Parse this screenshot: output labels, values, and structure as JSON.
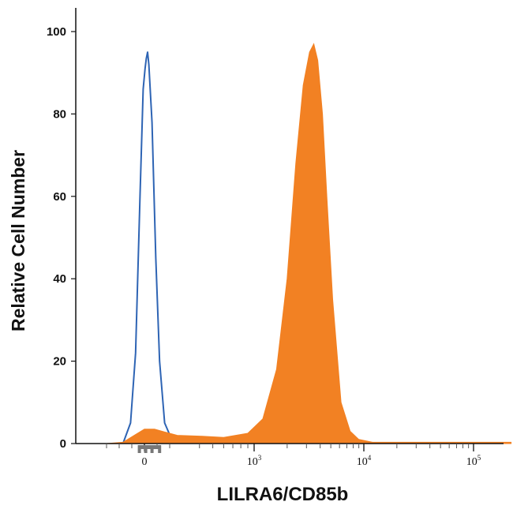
{
  "chart_data": {
    "type": "area",
    "title": "",
    "xlabel": "LILRA6/CD85b",
    "ylabel": "Relative Cell Number",
    "x_scale": "biexponential",
    "xlim": [
      -300,
      220000
    ],
    "ylim": [
      0,
      100
    ],
    "grid": false,
    "legend": "none",
    "yticks": [
      0,
      20,
      40,
      60,
      80,
      100
    ],
    "ytick_labels": [
      "0",
      "20",
      "40",
      "60",
      "80",
      "100"
    ],
    "xticks": [
      {
        "value": 0,
        "base": "0",
        "exp": ""
      },
      {
        "value": 1000,
        "base": "10",
        "exp": "3"
      },
      {
        "value": 10000,
        "base": "10",
        "exp": "4"
      },
      {
        "value": 100000,
        "base": "10",
        "exp": "5"
      }
    ],
    "series": [
      {
        "kind": "outline",
        "color": "#2e64b4",
        "x": [
          -170,
          -110,
          -70,
          -35,
          -10,
          5,
          15,
          25,
          35,
          60,
          90,
          120,
          160,
          230
        ],
        "y": [
          0,
          5,
          22,
          60,
          86,
          91,
          93.5,
          95,
          92,
          78,
          45,
          20,
          5,
          0
        ]
      },
      {
        "kind": "filled",
        "color": "#f28123",
        "x": [
          -300,
          -170,
          -80,
          0,
          80,
          160,
          260,
          400,
          600,
          900,
          1200,
          1600,
          2000,
          2400,
          2800,
          3200,
          3500,
          3800,
          4200,
          4600,
          5200,
          6200,
          7500,
          9000,
          12000,
          30000,
          100000,
          220000
        ],
        "y": [
          0,
          0.3,
          2,
          3.5,
          3.5,
          2.8,
          2,
          1.8,
          1.5,
          2.5,
          6,
          18,
          40,
          68,
          87,
          95,
          97,
          93,
          80,
          60,
          35,
          10,
          3,
          1,
          0.3,
          0.3,
          0.3,
          0.3
        ]
      }
    ],
    "rug_marker_color": "#777777"
  }
}
